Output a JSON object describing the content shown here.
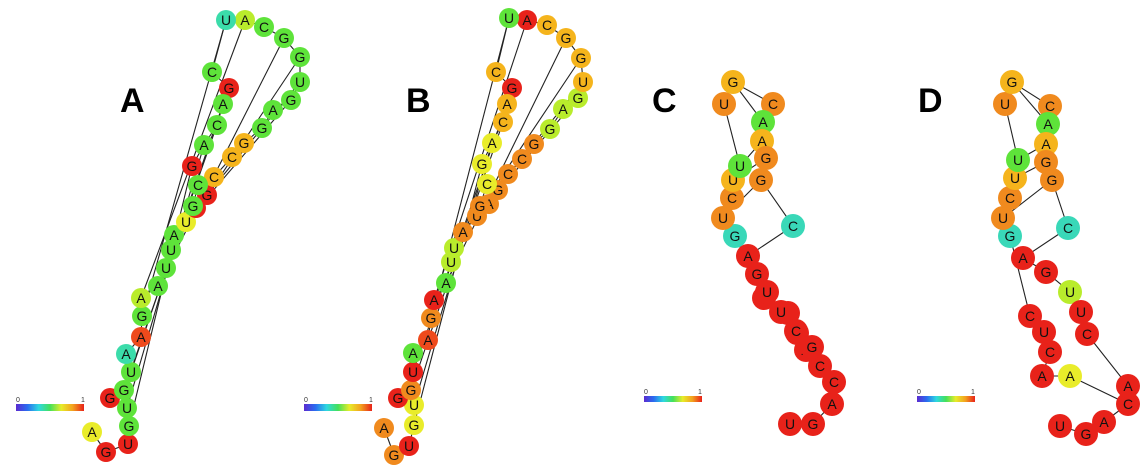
{
  "palette": {
    "red": "#e8221a",
    "redorange": "#ee4a1c",
    "orange": "#f08a1e",
    "orangeyellow": "#f5b41c",
    "yellow": "#e9ec2a",
    "yellowgreen": "#b9ec2c",
    "green": "#5ee33a",
    "lightgreen": "#8fe63a",
    "cyan": "#3bdcaa",
    "teal": "#39d8b8"
  },
  "color_scale": {
    "min_label": "0",
    "max_label": "1",
    "stops": [
      "#5b2bd0",
      "#2a6cf0",
      "#2ed8e0",
      "#44e05a",
      "#e7ec2a",
      "#f3a21e",
      "#e8221a"
    ]
  },
  "panels": [
    {
      "id": "A",
      "label": "A",
      "nucleotides": [
        {
          "b": "A",
          "c": "yellow"
        },
        {
          "b": "G",
          "c": "red"
        },
        {
          "b": "U",
          "c": "red"
        },
        {
          "b": "G",
          "c": "green"
        },
        {
          "b": "U",
          "c": "green"
        },
        {
          "b": "G",
          "c": "red"
        },
        {
          "b": "G",
          "c": "green"
        },
        {
          "b": "U",
          "c": "green"
        },
        {
          "b": "A",
          "c": "cyan"
        },
        {
          "b": "A",
          "c": "redorange"
        },
        {
          "b": "G",
          "c": "green"
        },
        {
          "b": "A",
          "c": "yellowgreen"
        },
        {
          "b": "A",
          "c": "green"
        },
        {
          "b": "U",
          "c": "green"
        },
        {
          "b": "U",
          "c": "green"
        },
        {
          "b": "A",
          "c": "green"
        },
        {
          "b": "U",
          "c": "yellow"
        },
        {
          "b": "A",
          "c": "red"
        },
        {
          "b": "G",
          "c": "red"
        },
        {
          "b": "C",
          "c": "orangeyellow"
        },
        {
          "b": "C",
          "c": "orangeyellow"
        },
        {
          "b": "G",
          "c": "orangeyellow"
        },
        {
          "b": "G",
          "c": "green"
        },
        {
          "b": "A",
          "c": "green"
        },
        {
          "b": "G",
          "c": "green"
        },
        {
          "b": "U",
          "c": "green"
        },
        {
          "b": "G",
          "c": "green"
        },
        {
          "b": "G",
          "c": "green"
        },
        {
          "b": "C",
          "c": "green"
        },
        {
          "b": "A",
          "c": "yellowgreen"
        },
        {
          "b": "U",
          "c": "cyan"
        },
        {
          "b": "C",
          "c": "green"
        },
        {
          "b": "G",
          "c": "red"
        },
        {
          "b": "A",
          "c": "green"
        },
        {
          "b": "C",
          "c": "green"
        },
        {
          "b": "A",
          "c": "green"
        },
        {
          "b": "G",
          "c": "red"
        },
        {
          "b": "C",
          "c": "green"
        },
        {
          "b": "G",
          "c": "green"
        }
      ]
    },
    {
      "id": "B",
      "label": "B",
      "nucleotides": [
        {
          "b": "A",
          "c": "orange"
        },
        {
          "b": "G",
          "c": "orange"
        },
        {
          "b": "U",
          "c": "red"
        },
        {
          "b": "G",
          "c": "yellow"
        },
        {
          "b": "U",
          "c": "yellow"
        },
        {
          "b": "G",
          "c": "red"
        },
        {
          "b": "G",
          "c": "orange"
        },
        {
          "b": "U",
          "c": "red"
        },
        {
          "b": "A",
          "c": "green"
        },
        {
          "b": "A",
          "c": "redorange"
        },
        {
          "b": "G",
          "c": "orange"
        },
        {
          "b": "A",
          "c": "red"
        },
        {
          "b": "A",
          "c": "green"
        },
        {
          "b": "U",
          "c": "yellowgreen"
        },
        {
          "b": "U",
          "c": "yellowgreen"
        },
        {
          "b": "A",
          "c": "orange"
        },
        {
          "b": "U",
          "c": "orange"
        },
        {
          "b": "A",
          "c": "orange"
        },
        {
          "b": "G",
          "c": "orange"
        },
        {
          "b": "C",
          "c": "orange"
        },
        {
          "b": "C",
          "c": "orange"
        },
        {
          "b": "G",
          "c": "orange"
        },
        {
          "b": "G",
          "c": "yellowgreen"
        },
        {
          "b": "A",
          "c": "yellowgreen"
        },
        {
          "b": "G",
          "c": "yellowgreen"
        },
        {
          "b": "U",
          "c": "orangeyellow"
        },
        {
          "b": "G",
          "c": "orangeyellow"
        },
        {
          "b": "G",
          "c": "orangeyellow"
        },
        {
          "b": "C",
          "c": "orangeyellow"
        },
        {
          "b": "A",
          "c": "red"
        },
        {
          "b": "U",
          "c": "green"
        },
        {
          "b": "C",
          "c": "orangeyellow"
        },
        {
          "b": "G",
          "c": "red"
        },
        {
          "b": "A",
          "c": "orangeyellow"
        },
        {
          "b": "C",
          "c": "orangeyellow"
        },
        {
          "b": "A",
          "c": "yellow"
        },
        {
          "b": "G",
          "c": "yellow"
        },
        {
          "b": "C",
          "c": "yellow"
        },
        {
          "b": "G",
          "c": "orange"
        }
      ]
    },
    {
      "id": "C",
      "label": "C",
      "nucleotides": [
        {
          "b": "U",
          "c": "red"
        },
        {
          "b": "G",
          "c": "red"
        },
        {
          "b": "A",
          "c": "red"
        },
        {
          "b": "C",
          "c": "red"
        },
        {
          "b": "C",
          "c": "red"
        },
        {
          "b": "A",
          "c": "red"
        },
        {
          "b": "C",
          "c": "red"
        },
        {
          "b": "U",
          "c": "red"
        },
        {
          "b": "C",
          "c": "red"
        },
        {
          "b": "G",
          "c": "teal"
        },
        {
          "b": "U",
          "c": "orange"
        },
        {
          "b": "C",
          "c": "orange"
        },
        {
          "b": "U",
          "c": "orangeyellow"
        },
        {
          "b": "U",
          "c": "green"
        },
        {
          "b": "U",
          "c": "orange"
        },
        {
          "b": "G",
          "c": "orangeyellow"
        },
        {
          "b": "C",
          "c": "orange"
        },
        {
          "b": "A",
          "c": "green"
        },
        {
          "b": "A",
          "c": "orangeyellow"
        },
        {
          "b": "G",
          "c": "orange"
        },
        {
          "b": "G",
          "c": "orange"
        },
        {
          "b": "C",
          "c": "teal"
        },
        {
          "b": "A",
          "c": "red"
        },
        {
          "b": "G",
          "c": "red"
        },
        {
          "b": "U",
          "c": "red"
        },
        {
          "b": "U",
          "c": "red"
        },
        {
          "b": "C",
          "c": "red"
        },
        {
          "b": "G",
          "c": "red"
        }
      ]
    },
    {
      "id": "D",
      "label": "D",
      "nucleotides": [
        {
          "b": "U",
          "c": "red"
        },
        {
          "b": "G",
          "c": "red"
        },
        {
          "b": "A",
          "c": "red"
        },
        {
          "b": "C",
          "c": "red"
        },
        {
          "b": "A",
          "c": "yellow"
        },
        {
          "b": "A",
          "c": "red"
        },
        {
          "b": "C",
          "c": "red"
        },
        {
          "b": "U",
          "c": "red"
        },
        {
          "b": "C",
          "c": "red"
        },
        {
          "b": "G",
          "c": "teal"
        },
        {
          "b": "U",
          "c": "orange"
        },
        {
          "b": "C",
          "c": "orange"
        },
        {
          "b": "U",
          "c": "orangeyellow"
        },
        {
          "b": "U",
          "c": "green"
        },
        {
          "b": "U",
          "c": "orange"
        },
        {
          "b": "G",
          "c": "orangeyellow"
        },
        {
          "b": "C",
          "c": "orange"
        },
        {
          "b": "A",
          "c": "green"
        },
        {
          "b": "A",
          "c": "orangeyellow"
        },
        {
          "b": "G",
          "c": "orange"
        },
        {
          "b": "G",
          "c": "orange"
        },
        {
          "b": "C",
          "c": "teal"
        },
        {
          "b": "A",
          "c": "red"
        },
        {
          "b": "G",
          "c": "red"
        },
        {
          "b": "U",
          "c": "yellowgreen"
        },
        {
          "b": "U",
          "c": "red"
        },
        {
          "b": "C",
          "c": "red"
        },
        {
          "b": "A",
          "c": "red"
        }
      ]
    }
  ]
}
